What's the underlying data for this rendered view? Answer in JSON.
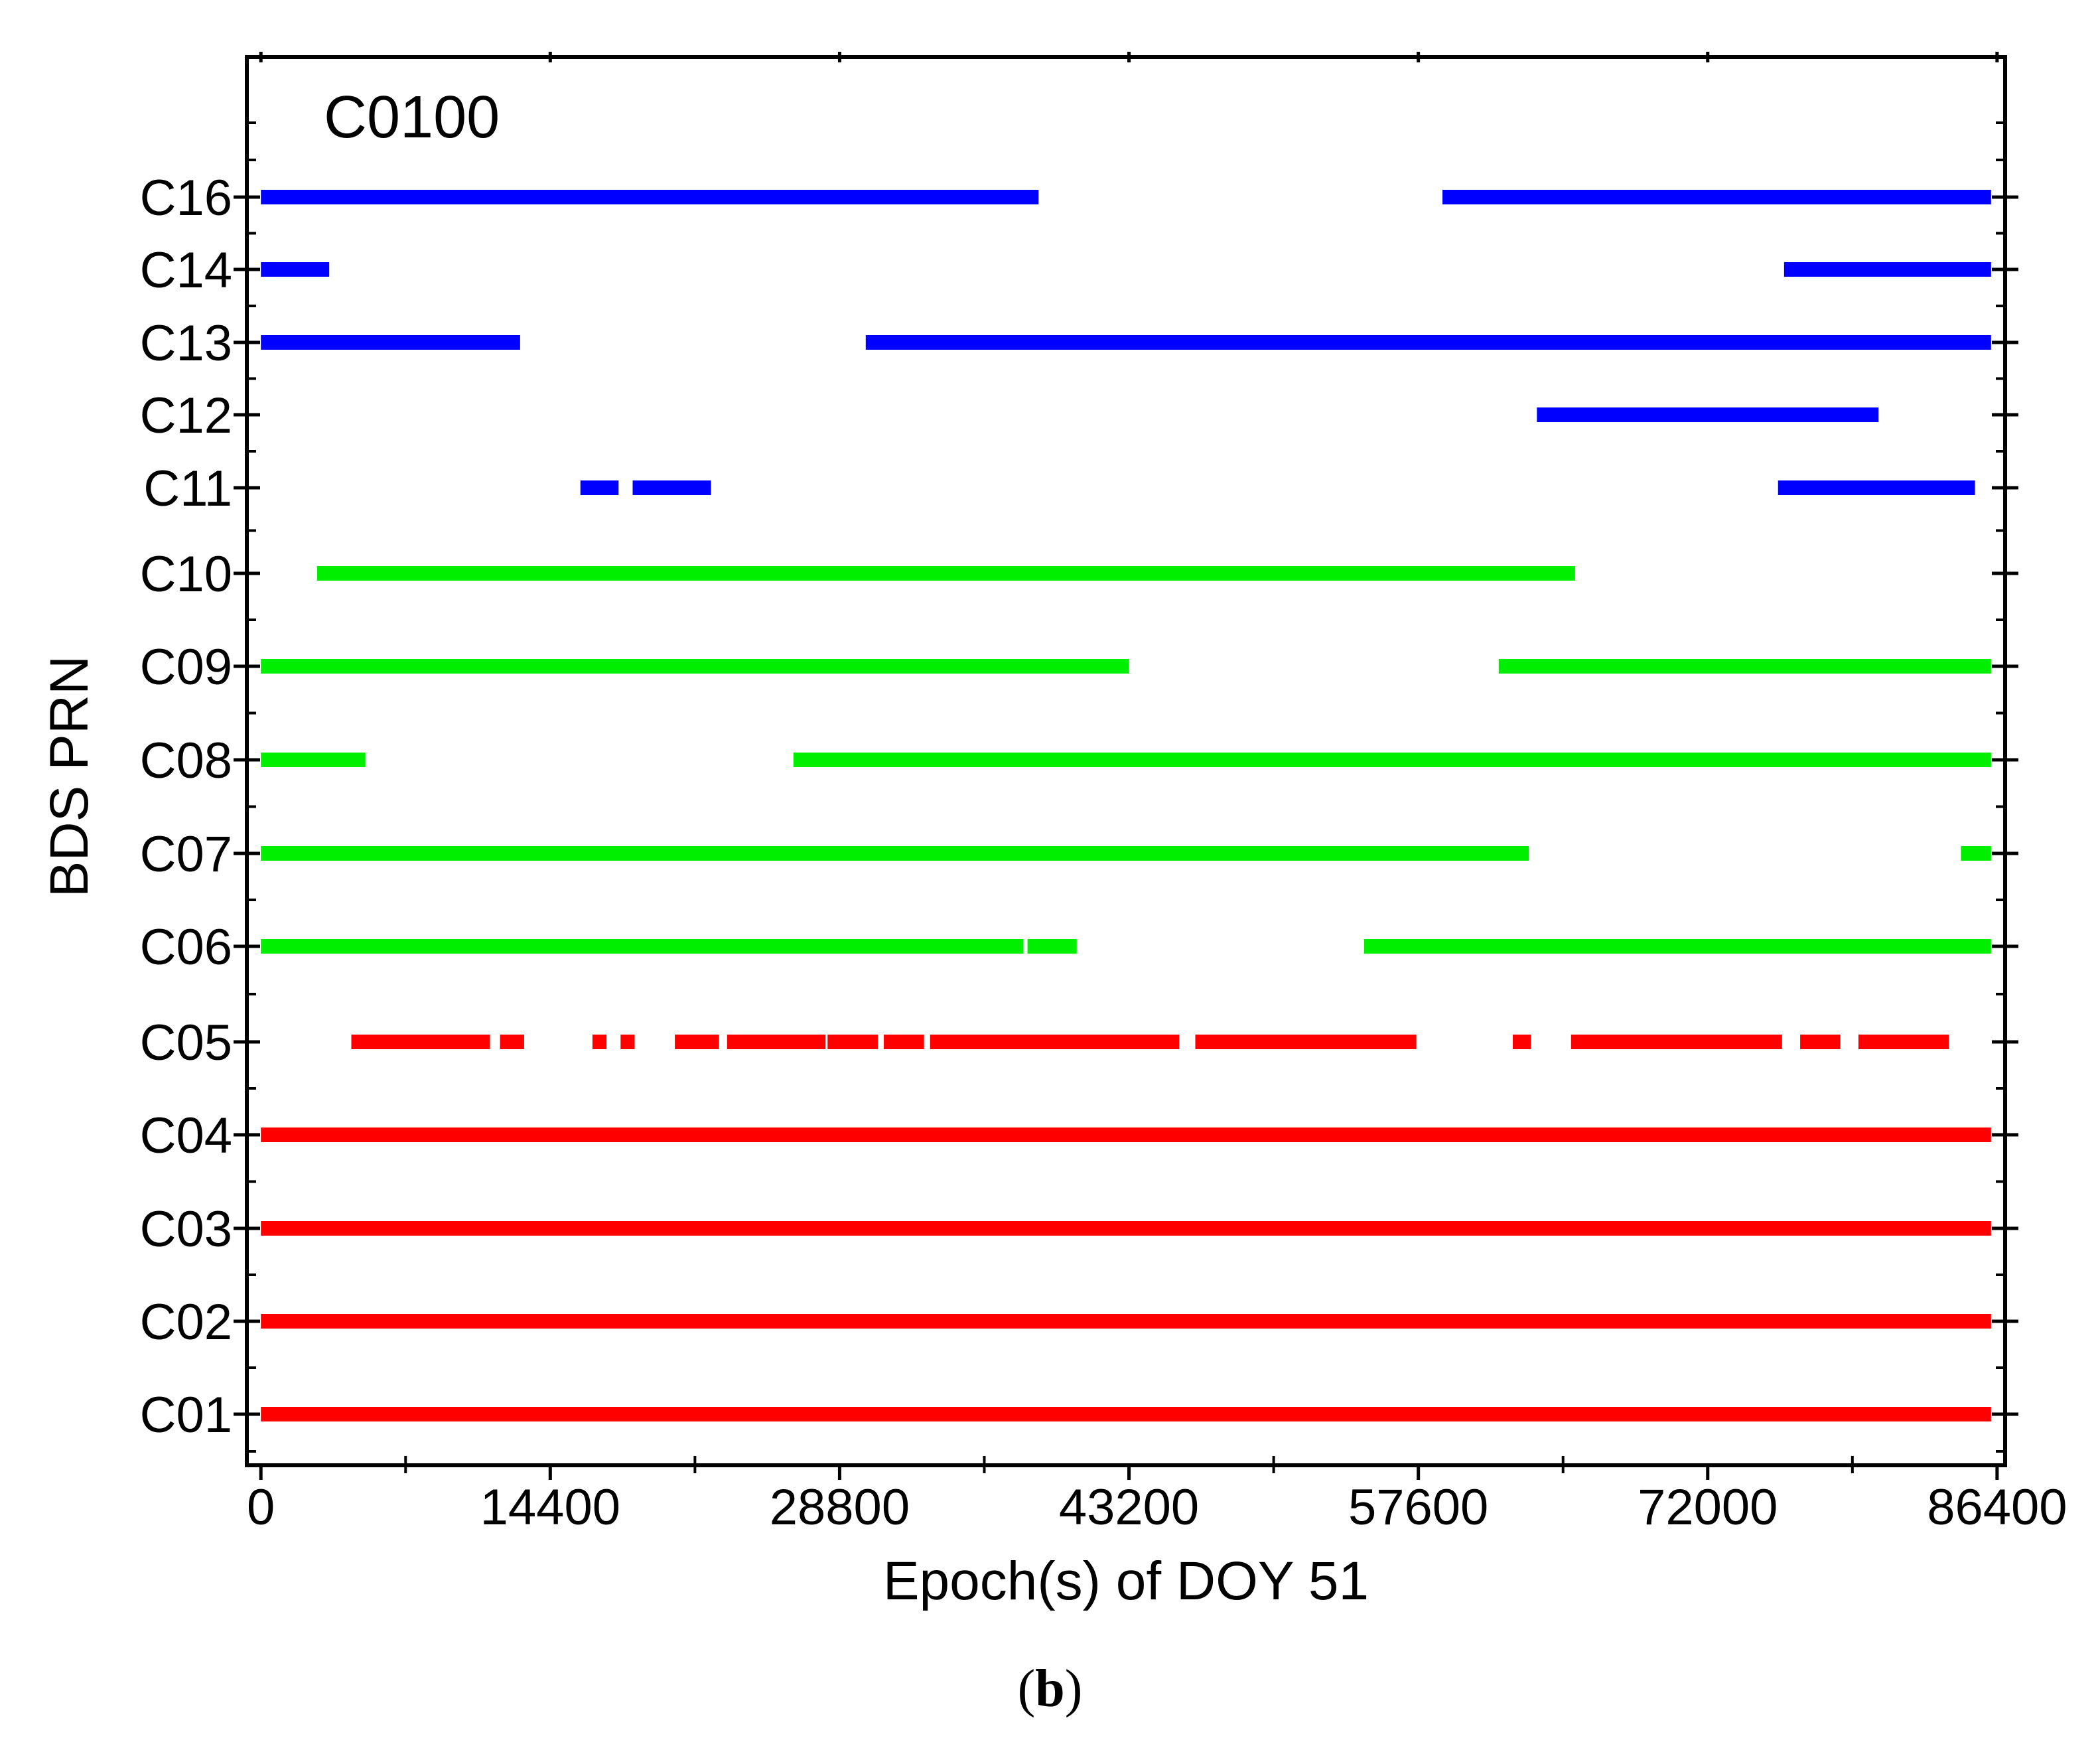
{
  "chart_data": {
    "type": "timeline",
    "title": "C0100",
    "xlabel": "Epoch(s) of DOY 51",
    "ylabel": "BDS PRN",
    "xlim": [
      -700,
      86800
    ],
    "xticks": [
      0,
      14400,
      28800,
      43200,
      57600,
      72000,
      86400
    ],
    "xtick_labels": [
      "0",
      "14400",
      "28800",
      "43200",
      "57600",
      "72000",
      "86400"
    ],
    "grid": false,
    "colors": {
      "geo": "#ff0000",
      "igso": "#00ee00",
      "meo": "#0000ff"
    },
    "rows": [
      {
        "prn": "C16",
        "color": "meo",
        "segments": [
          [
            0,
            38700
          ],
          [
            58800,
            86100
          ]
        ]
      },
      {
        "prn": "C14",
        "color": "meo",
        "segments": [
          [
            0,
            3400
          ],
          [
            75800,
            86100
          ]
        ]
      },
      {
        "prn": "C13",
        "color": "meo",
        "segments": [
          [
            0,
            12900
          ],
          [
            30100,
            86100
          ]
        ]
      },
      {
        "prn": "C12",
        "color": "meo",
        "segments": [
          [
            63500,
            80500
          ]
        ]
      },
      {
        "prn": "C11",
        "color": "meo",
        "segments": [
          [
            15900,
            17800
          ],
          [
            18500,
            22400
          ],
          [
            75500,
            85300
          ]
        ]
      },
      {
        "prn": "C10",
        "color": "igso",
        "segments": [
          [
            2800,
            65400
          ]
        ]
      },
      {
        "prn": "C09",
        "color": "igso",
        "segments": [
          [
            0,
            43200
          ],
          [
            61600,
            86100
          ]
        ]
      },
      {
        "prn": "C08",
        "color": "igso",
        "segments": [
          [
            0,
            5200
          ],
          [
            26500,
            86100
          ]
        ]
      },
      {
        "prn": "C07",
        "color": "igso",
        "segments": [
          [
            0,
            63100
          ],
          [
            84600,
            86100
          ]
        ]
      },
      {
        "prn": "C06",
        "color": "igso",
        "segments": [
          [
            0,
            37950
          ],
          [
            38150,
            40600
          ],
          [
            54900,
            86100
          ]
        ]
      },
      {
        "prn": "C05",
        "color": "geo",
        "segments": [
          [
            4500,
            11400
          ],
          [
            11900,
            13100
          ],
          [
            16500,
            17200
          ],
          [
            17900,
            18600
          ],
          [
            20600,
            22800
          ],
          [
            23200,
            28100
          ],
          [
            28200,
            30700
          ],
          [
            31000,
            33000
          ],
          [
            33300,
            45700
          ],
          [
            46500,
            57500
          ],
          [
            62300,
            63200
          ],
          [
            65200,
            75700
          ],
          [
            76600,
            78600
          ],
          [
            79500,
            84000
          ]
        ]
      },
      {
        "prn": "C04",
        "color": "geo",
        "segments": [
          [
            0,
            86100
          ]
        ]
      },
      {
        "prn": "C03",
        "color": "geo",
        "segments": [
          [
            0,
            86100
          ]
        ]
      },
      {
        "prn": "C02",
        "color": "geo",
        "segments": [
          [
            0,
            86100
          ]
        ]
      },
      {
        "prn": "C01",
        "color": "geo",
        "segments": [
          [
            0,
            86100
          ]
        ]
      }
    ]
  },
  "caption": {
    "open": "(",
    "letter": "b",
    "close": ")"
  }
}
